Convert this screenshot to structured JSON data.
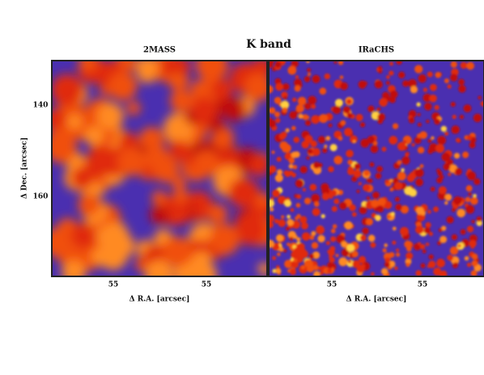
{
  "figure": {
    "title": "K band",
    "ylabel": "Δ Dec. [arcsec]",
    "yticks": [
      "140",
      "160"
    ],
    "panels": [
      {
        "title": "2MASS",
        "xlabel": "Δ R.A. [arcsec]",
        "xticks": [
          "55",
          "55"
        ]
      },
      {
        "title": "IRaCHS",
        "xlabel": "Δ R.A. [arcsec]",
        "xticks": [
          "55",
          "55"
        ]
      }
    ]
  }
}
